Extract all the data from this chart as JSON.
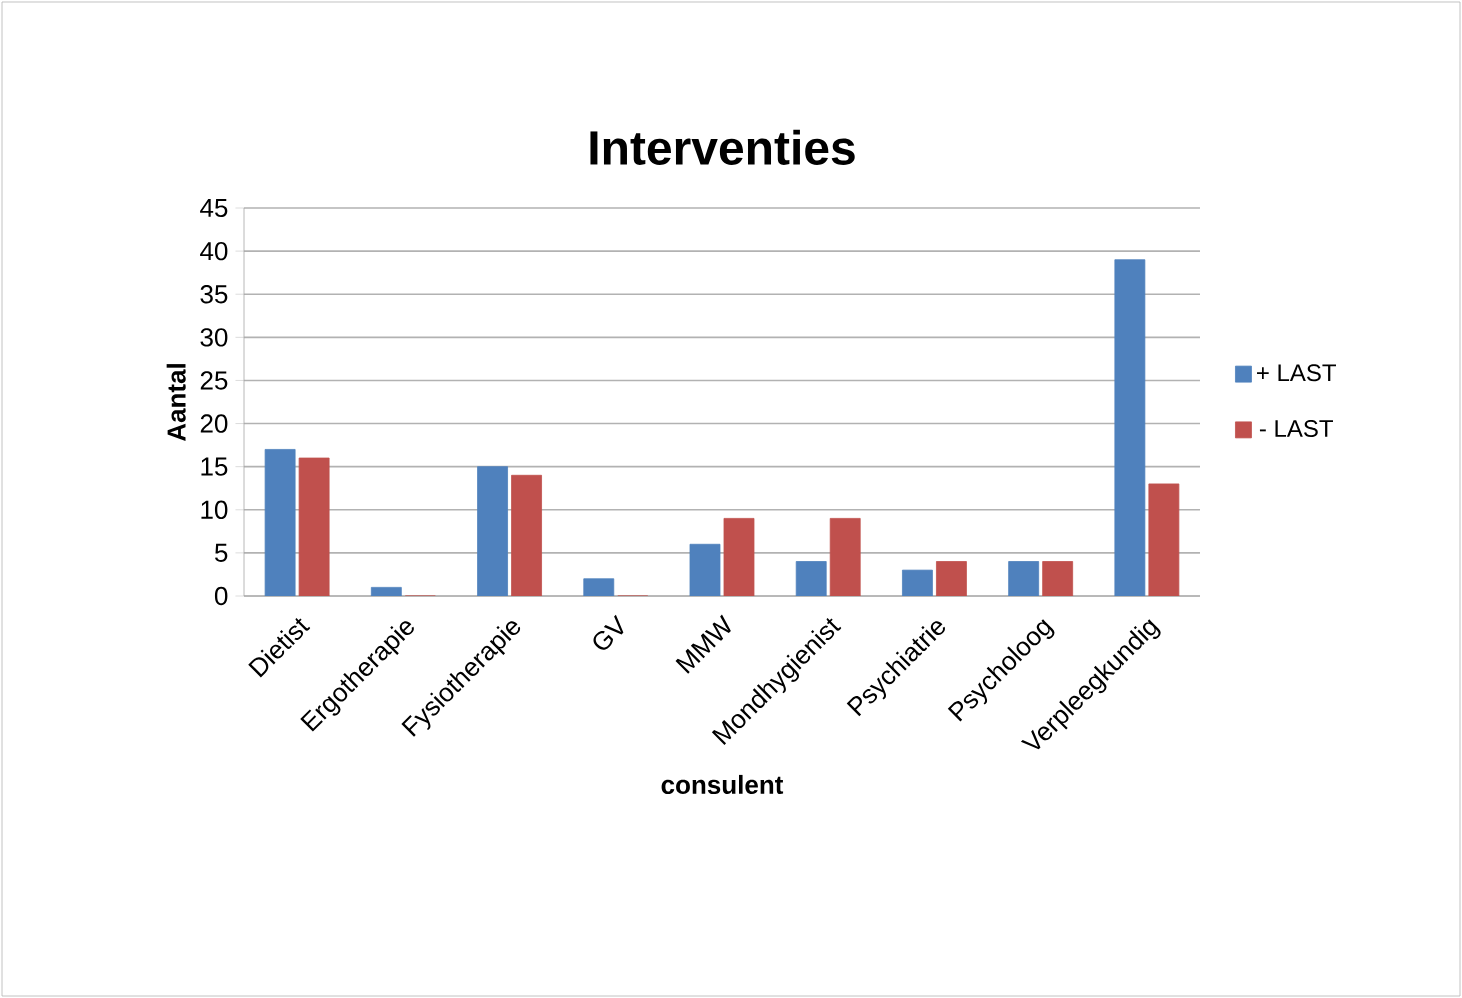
{
  "chart_data": {
    "type": "bar",
    "title": "Interventies",
    "xlabel": "consulent",
    "ylabel": "Aantal",
    "categories": [
      "Dietist",
      "Ergotherapie",
      "Fysiotherapie",
      "GV",
      "MMW",
      "Mondhygienist",
      "Psychiatrie",
      "Psycholoog",
      "Verpleegkundig"
    ],
    "series": [
      {
        "name": "+ LAST",
        "color": "#4f81bd",
        "values": [
          17,
          1,
          15,
          2,
          6,
          4,
          3,
          4,
          39
        ]
      },
      {
        "name": "- LAST",
        "color": "#c0504d",
        "values": [
          16,
          0,
          14,
          0,
          9,
          9,
          4,
          4,
          13
        ]
      }
    ],
    "ylim": [
      0,
      45
    ],
    "yticks": [
      0,
      5,
      10,
      15,
      20,
      25,
      30,
      35,
      40,
      45
    ],
    "grid": "y",
    "legend": "right"
  }
}
